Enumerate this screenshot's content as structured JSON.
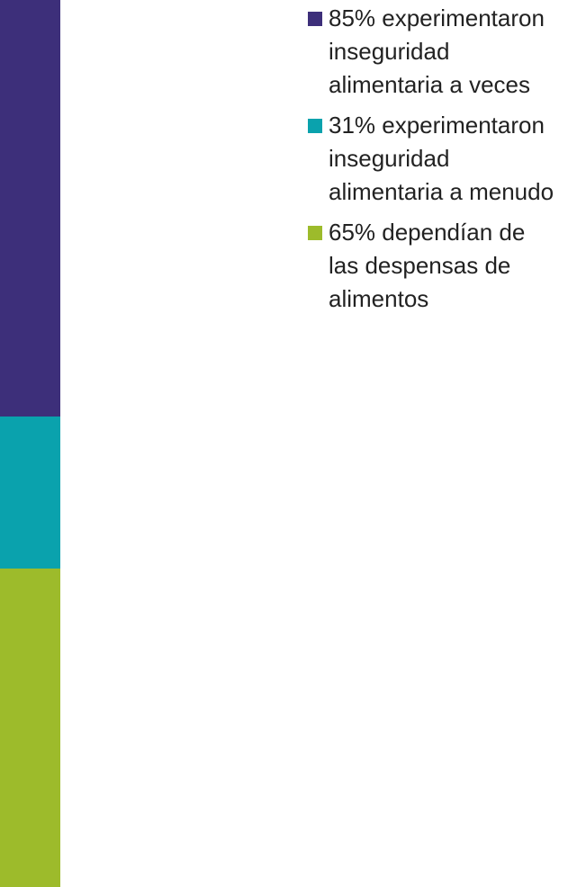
{
  "chart_data": {
    "type": "bar",
    "series": [
      {
        "name": "85% experimentaron inseguridad alimentaria a veces",
        "color": "#3d2f7a",
        "values": [
          85
        ]
      },
      {
        "name": "31% experimentaron inseguridad alimentaria a menudo",
        "color": "#0aa2ad",
        "values": [
          31
        ]
      },
      {
        "name": "65% dependían de las despensas de alimentos",
        "color": "#9dbb2b",
        "values": [
          65
        ]
      }
    ],
    "legend": "right"
  }
}
